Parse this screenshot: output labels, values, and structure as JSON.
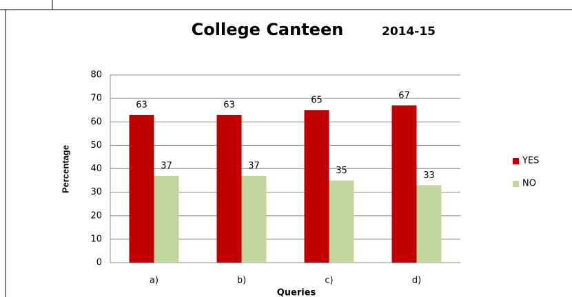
{
  "chart_data": {
    "type": "bar",
    "title": "College Canteen",
    "subtitle": "2014-15",
    "y_label": "Percentage",
    "x_label": "Queries",
    "categories": [
      "a)",
      "b)",
      "c)",
      "d)"
    ],
    "series": [
      {
        "name": "YES",
        "color": "#c00000",
        "values": [
          63,
          63,
          65,
          67
        ]
      },
      {
        "name": "NO",
        "color": "#c3d69b",
        "values": [
          37,
          37,
          35,
          33
        ]
      }
    ],
    "ylim": [
      0,
      80
    ],
    "yticks": [
      0,
      10,
      20,
      30,
      40,
      50,
      60,
      70,
      80
    ],
    "grid": true,
    "legend": "right"
  }
}
